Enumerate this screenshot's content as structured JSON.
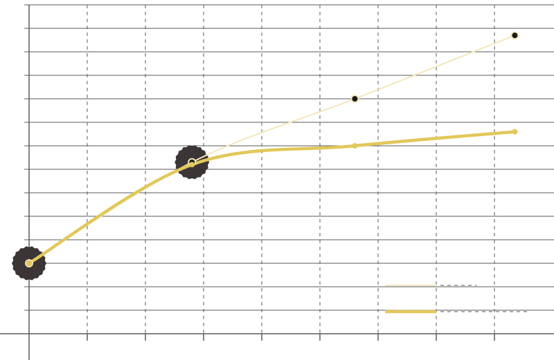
{
  "chart_data": {
    "type": "line",
    "title": "",
    "xlabel": "",
    "ylabel": "",
    "xlim": [
      0,
      9
    ],
    "ylim": [
      0,
      14
    ],
    "grid": true,
    "legend_position": "bottom-right",
    "series": [
      {
        "color": "#f2e8bc",
        "width": 2,
        "points": [
          [
            0,
            3
          ],
          [
            2.8,
            7.3
          ],
          [
            5.6,
            10
          ],
          [
            8.35,
            12.7
          ]
        ],
        "halos": [
          0,
          1
        ],
        "marker": "dark-dot"
      },
      {
        "color": "#e2c85a",
        "width": 4.5,
        "points": [
          [
            0,
            3
          ],
          [
            2.8,
            7.2
          ],
          [
            5.6,
            8
          ],
          [
            8.35,
            8.6
          ]
        ],
        "halos": [],
        "marker": "small-dot"
      }
    ]
  }
}
